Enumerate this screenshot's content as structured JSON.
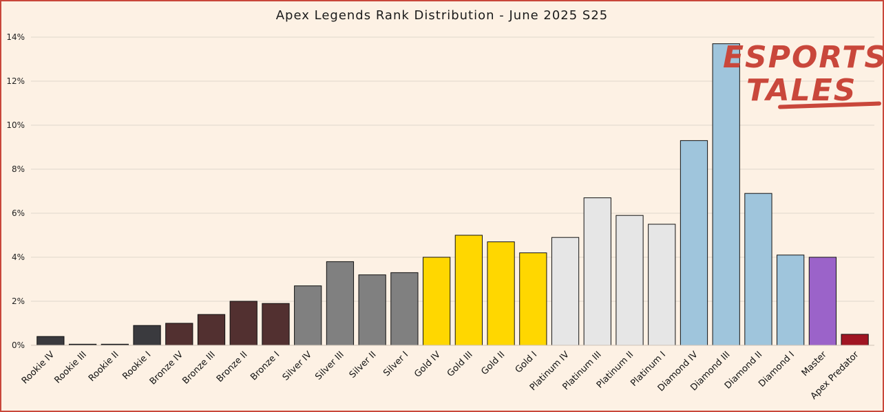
{
  "chart_data": {
    "type": "bar",
    "title": "Apex Legends Rank Distribution  - June 2025 S25",
    "xlabel": "",
    "ylabel": "",
    "ylim": [
      0,
      14
    ],
    "y_ticks": [
      "0%",
      "2%",
      "4%",
      "6%",
      "8%",
      "10%",
      "12%",
      "14%"
    ],
    "y_unit": "%",
    "grid": "horizontal",
    "categories": [
      "Rookie IV",
      "Rookie III",
      "Rookie II",
      "Rookie I",
      "Bronze IV",
      "Bronze III",
      "Bronze II",
      "Bronze I",
      "Silver IV",
      "Silver III",
      "Silver II",
      "Silver I",
      "Gold IV",
      "Gold III",
      "Gold II",
      "Gold I",
      "Platinum IV",
      "Platinum III",
      "Platinum II",
      "Platinum I",
      "Diamond IV",
      "Diamond III",
      "Diamond II",
      "Diamond I",
      "Master",
      "Apex Predator"
    ],
    "values": [
      0.4,
      0.05,
      0.05,
      0.9,
      1.0,
      1.4,
      2.0,
      1.9,
      2.7,
      3.8,
      3.2,
      3.3,
      4.0,
      5.0,
      4.7,
      4.2,
      4.9,
      6.7,
      5.9,
      5.5,
      9.3,
      13.7,
      6.9,
      4.1,
      4.0,
      0.5
    ],
    "bar_colors": [
      "#3a3a3e",
      "#3a3a3e",
      "#3a3a3e",
      "#3a3a3e",
      "#523030",
      "#523030",
      "#523030",
      "#523030",
      "#808080",
      "#808080",
      "#808080",
      "#808080",
      "#ffd700",
      "#ffd700",
      "#ffd700",
      "#ffd700",
      "#e6e6e6",
      "#e6e6e6",
      "#e6e6e6",
      "#e6e6e6",
      "#9fc5dc",
      "#9fc5dc",
      "#9fc5dc",
      "#9fc5dc",
      "#9b63c9",
      "#a01522"
    ]
  },
  "watermark": {
    "line1": "ESPORTS",
    "line2": "TALES"
  },
  "colors": {
    "background": "#fdf1e4",
    "border": "#c9473b",
    "grid": "#e0d6cb"
  }
}
